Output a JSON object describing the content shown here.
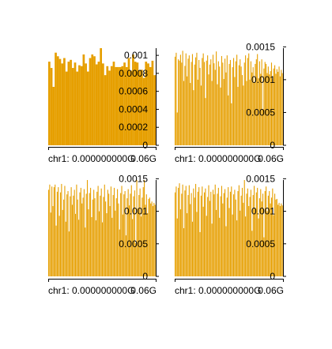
{
  "chart_data": [
    {
      "type": "area",
      "ytick_labels": [
        "0.001",
        "0.0008",
        "0.0006",
        "0.0004",
        "0.0002",
        "0"
      ],
      "yticks": [
        0.001,
        0.0008,
        0.0006,
        0.0004,
        0.0002,
        0
      ],
      "ylim": [
        0,
        0.00108
      ],
      "xlabel": "chr1: 0.000000000G",
      "xlabel_end": "0.06G",
      "color": "#E69F00",
      "values": [
        0.00093,
        0.00086,
        0.00065,
        0.00103,
        0.00099,
        0.00096,
        0.00091,
        0.00097,
        0.00082,
        0.00093,
        0.00095,
        0.00086,
        0.00092,
        0.00082,
        0.00089,
        0.00088,
        0.00101,
        0.00091,
        0.00082,
        0.00097,
        0.00101,
        0.00099,
        0.0009,
        0.00093,
        0.00108,
        0.00091,
        0.00078,
        0.00088,
        0.00083,
        0.00088,
        0.00093,
        0.00087,
        0.00087,
        0.00087,
        0.00088,
        0.00092,
        0.00087,
        0.00097,
        0.00083,
        0.00101,
        0.00093,
        0.00092,
        0.00083,
        0.00084,
        0.00075,
        0.00093,
        0.00091,
        0.00087,
        0.00094,
        0.00078
      ]
    },
    {
      "type": "area",
      "ytick_labels": [
        "0.0015",
        "0.001",
        "0.0005",
        "0"
      ],
      "yticks": [
        0.0015,
        0.001,
        0.0005,
        0
      ],
      "ylim": [
        0,
        0.00148
      ],
      "xlabel": "chr1: 0.000000000G",
      "xlabel_end": "0.06G",
      "color": "#E69F00",
      "values": [
        0.00135,
        0.00141,
        0.0005,
        0.00131,
        0.00129,
        0.00138,
        0.00126,
        0.00144,
        0.00098,
        0.00121,
        0.0014,
        0.00105,
        0.00132,
        0.00137,
        0.00095,
        0.00127,
        0.00139,
        0.00084,
        0.00123,
        0.00134,
        0.00141,
        0.001,
        0.0013,
        0.00118,
        0.00091,
        0.00133,
        0.0014,
        0.00127,
        0.00072,
        0.00129,
        0.00137,
        0.00108,
        0.00123,
        0.00131,
        0.00098,
        0.00138,
        0.00125,
        0.00115,
        0.00143,
        0.00093,
        0.00128,
        0.0012,
        0.00088,
        0.00136,
        0.00126,
        0.00101,
        0.00132,
        0.00111,
        0.00137,
        0.00076,
        0.00124,
        0.0013,
        0.00064,
        0.00119,
        0.00133,
        0.00104,
        0.00128,
        0.00138,
        0.00089,
        0.00122,
        0.00131,
        0.0012,
        0.00107,
        0.00091,
        0.00126,
        0.00137,
        0.00098,
        0.00133,
        0.0014,
        0.001,
        0.00128,
        0.00111,
        0.00119,
        0.00096,
        0.00124,
        0.00131,
        0.00139,
        0.00102,
        0.00128,
        0.00109,
        0.00131,
        0.00055,
        0.00117,
        0.00127,
        0.00124,
        0.0011,
        0.0012,
        0.00108,
        0.00113,
        0.00126,
        0.00101,
        0.00117,
        0.00122,
        0.00109,
        0.00116,
        0.00112,
        0.0012,
        0.00105,
        0.00115,
        0.0011
      ]
    },
    {
      "type": "area",
      "ytick_labels": [
        "0.0015",
        "0.001",
        "0.0005",
        "0"
      ],
      "yticks": [
        0.0015,
        0.001,
        0.0005,
        0
      ],
      "ylim": [
        0,
        0.00148
      ],
      "xlabel": "chr1: 0.000000000G",
      "xlabel_end": "0.06G",
      "color": "#E69F00",
      "values": [
        0.00133,
        0.00141,
        0.00098,
        0.00138,
        0.00108,
        0.00137,
        0.00141,
        0.00078,
        0.0013,
        0.00137,
        0.00093,
        0.00129,
        0.00142,
        0.00102,
        0.00118,
        0.00139,
        0.00084,
        0.00126,
        0.00131,
        0.00069,
        0.00123,
        0.00137,
        0.0011,
        0.00124,
        0.00133,
        0.00096,
        0.00141,
        0.00118,
        0.00087,
        0.00129,
        0.00136,
        0.00112,
        0.00121,
        0.00134,
        0.00075,
        0.00127,
        0.00148,
        0.00103,
        0.00128,
        0.00136,
        0.00091,
        0.00118,
        0.00133,
        0.0012,
        0.00086,
        0.0013,
        0.00139,
        0.001,
        0.00124,
        0.00135,
        0.00083,
        0.00122,
        0.00141,
        0.00115,
        0.00097,
        0.00133,
        0.00127,
        0.00108,
        0.00138,
        0.0009,
        0.00125,
        0.00136,
        0.00101,
        0.0012,
        0.00134,
        0.00112,
        0.00072,
        0.00128,
        0.00139,
        0.00095,
        0.00126,
        0.00131,
        0.00063,
        0.0012,
        0.00134,
        0.00109,
        0.00127,
        0.0014,
        0.00088,
        0.00123,
        0.00132,
        0.00051,
        0.00148,
        0.00104,
        0.00125,
        0.00135,
        0.00092,
        0.00121,
        0.00137,
        0.00148,
        0.0011,
        0.00126,
        0.00097,
        0.00119,
        0.00121,
        0.00112,
        0.00115,
        0.00108,
        0.00113,
        0.0011
      ]
    },
    {
      "type": "area",
      "ytick_labels": [
        "0.0015",
        "0.001",
        "0.0005",
        "0"
      ],
      "yticks": [
        0.0015,
        0.001,
        0.0005,
        0
      ],
      "ylim": [
        0,
        0.00148
      ],
      "xlabel": "chr1: 0.000000000G",
      "xlabel_end": "0.06G",
      "color": "#E69F00",
      "values": [
        0.00129,
        0.00138,
        0.00089,
        0.00136,
        0.00143,
        0.00103,
        0.00127,
        0.00141,
        0.00074,
        0.00132,
        0.00139,
        0.00097,
        0.00125,
        0.0014,
        0.00111,
        0.00128,
        0.00084,
        0.00135,
        0.00121,
        0.00142,
        0.00099,
        0.0013,
        0.00137,
        0.00068,
        0.00124,
        0.00138,
        0.00107,
        0.00129,
        0.00135,
        0.00093,
        0.00122,
        0.0014,
        0.00116,
        0.0013,
        0.00081,
        0.00133,
        0.00126,
        0.00141,
        0.00102,
        0.00127,
        0.00136,
        0.0009,
        0.00123,
        0.00139,
        0.00112,
        0.00128,
        0.00134,
        0.00077,
        0.00121,
        0.00137,
        0.00105,
        0.0013,
        0.00138,
        0.00095,
        0.00126,
        0.00133,
        0.00118,
        0.00086,
        0.00131,
        0.0014,
        0.00101,
        0.00124,
        0.00136,
        0.00113,
        0.00148,
        0.00092,
        0.00127,
        0.00135,
        0.00108,
        0.00122,
        0.00133,
        0.0007,
        0.00125,
        0.00139,
        0.00104,
        0.00129,
        0.00136,
        0.00089,
        0.0012,
        0.00134,
        0.00115,
        0.00127,
        0.0006,
        0.00131,
        0.00138,
        0.001,
        0.00124,
        0.00131,
        0.00112,
        0.00121,
        0.00135,
        0.00094,
        0.00127,
        0.00118,
        0.00119,
        0.0011,
        0.00113,
        0.00108,
        0.00112,
        0.00109
      ]
    }
  ]
}
